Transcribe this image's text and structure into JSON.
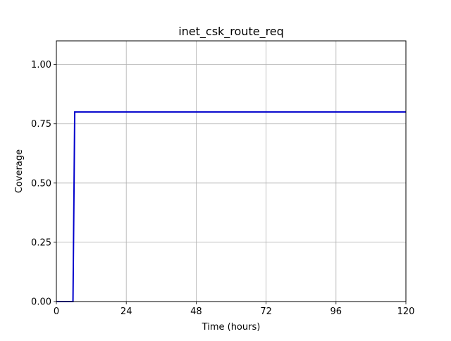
{
  "chart_data": {
    "type": "line",
    "title": "inet_csk_route_req",
    "xlabel": "Time (hours)",
    "ylabel": "Coverage",
    "xlim": [
      0,
      120
    ],
    "ylim": [
      0,
      1.1
    ],
    "x_ticks": [
      0,
      24,
      48,
      72,
      96,
      120
    ],
    "x_tick_labels": [
      "0",
      "24",
      "48",
      "72",
      "96",
      "120"
    ],
    "y_ticks": [
      0,
      0.25,
      0.5,
      0.75,
      1.0
    ],
    "y_tick_labels": [
      "0.00",
      "0.25",
      "0.50",
      "0.75",
      "1.00"
    ],
    "grid": true,
    "series": [
      {
        "color": "#0000cc",
        "x": [
          0,
          5.7,
          6.3,
          120
        ],
        "y": [
          0,
          0,
          0.8,
          0.8
        ]
      }
    ]
  }
}
